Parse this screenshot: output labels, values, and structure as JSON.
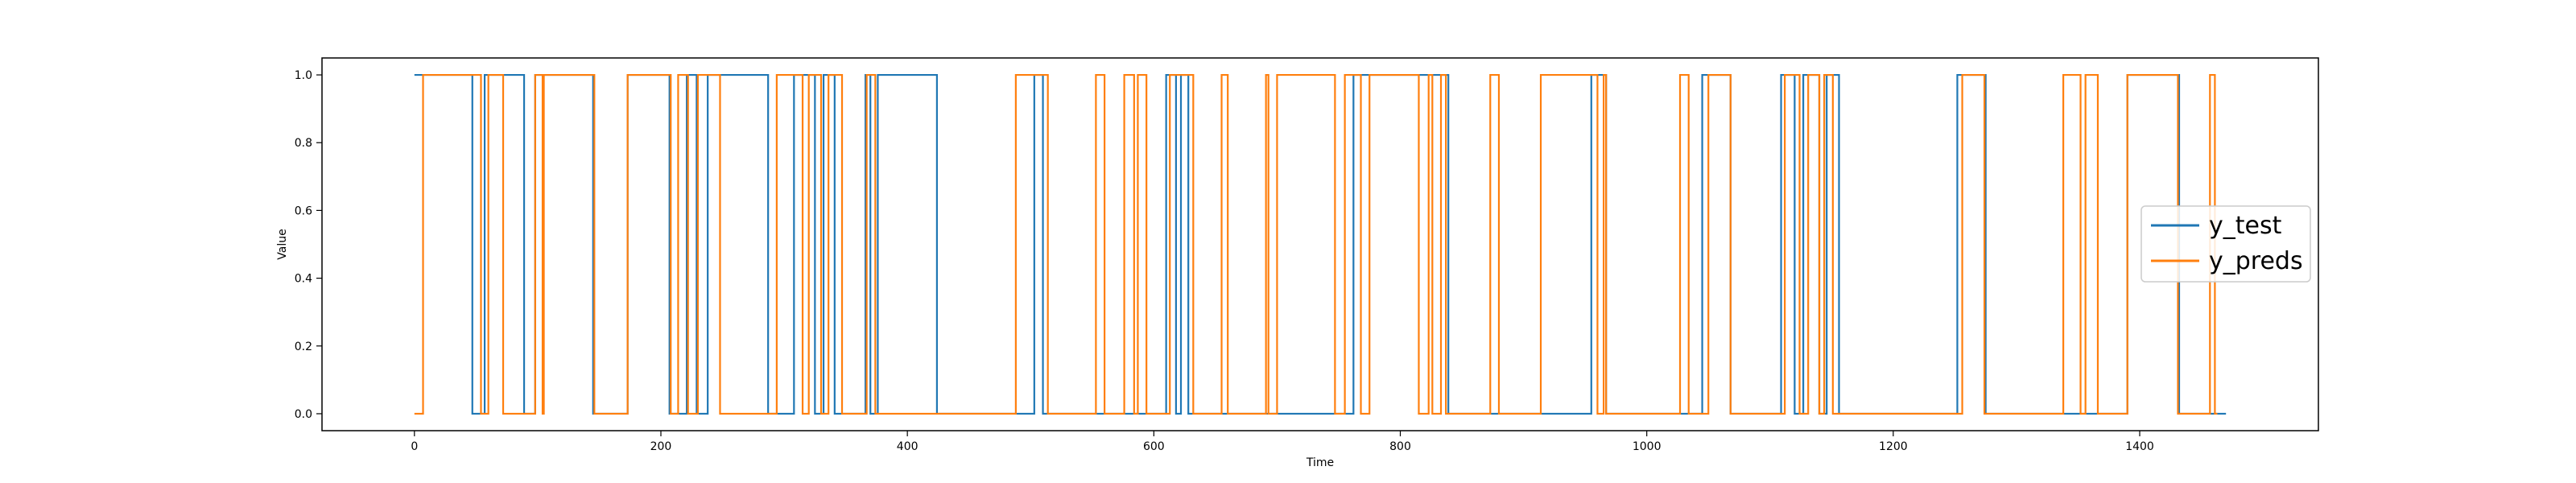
{
  "chart_data": {
    "type": "line",
    "xlabel": "Time",
    "ylabel": "Value",
    "xlim": [
      -75,
      1545
    ],
    "ylim": [
      -0.05,
      1.05
    ],
    "xticks": [
      0,
      200,
      400,
      600,
      800,
      1000,
      1200,
      1400
    ],
    "yticks": [
      0.0,
      0.2,
      0.4,
      0.6,
      0.8,
      1.0
    ],
    "grid": false,
    "legend_position": "center-right",
    "series": [
      {
        "name": "y_test",
        "color": "#1f77b4",
        "steps": [
          [
            0,
            1
          ],
          [
            47,
            0
          ],
          [
            57,
            1
          ],
          [
            89,
            0
          ],
          [
            98,
            1
          ],
          [
            145,
            0
          ],
          [
            173,
            1
          ],
          [
            207,
            0
          ],
          [
            221,
            1
          ],
          [
            229,
            0
          ],
          [
            238,
            1
          ],
          [
            287,
            0
          ],
          [
            308,
            1
          ],
          [
            325,
            0
          ],
          [
            332,
            1
          ],
          [
            341,
            0
          ],
          [
            366,
            1
          ],
          [
            370,
            0
          ],
          [
            376,
            1
          ],
          [
            424,
            0
          ],
          [
            503,
            1
          ],
          [
            510,
            0
          ],
          [
            610,
            1
          ],
          [
            618,
            0
          ],
          [
            622,
            1
          ],
          [
            628,
            0
          ],
          [
            762,
            1
          ],
          [
            839,
            0
          ],
          [
            955,
            1
          ],
          [
            967,
            0
          ],
          [
            1045,
            1
          ],
          [
            1068,
            0
          ],
          [
            1109,
            1
          ],
          [
            1120,
            0
          ],
          [
            1127,
            1
          ],
          [
            1140,
            0
          ],
          [
            1146,
            1
          ],
          [
            1156,
            0
          ],
          [
            1252,
            1
          ],
          [
            1275,
            0
          ],
          [
            1390,
            1
          ],
          [
            1432,
            0
          ]
        ],
        "x_end": 1470
      },
      {
        "name": "y_preds",
        "color": "#ff7f0e",
        "steps": [
          [
            0,
            0
          ],
          [
            7,
            1
          ],
          [
            54,
            0
          ],
          [
            60,
            1
          ],
          [
            72,
            0
          ],
          [
            98,
            1
          ],
          [
            104,
            0
          ],
          [
            105,
            1
          ],
          [
            146,
            0
          ],
          [
            173,
            1
          ],
          [
            208,
            0
          ],
          [
            214,
            1
          ],
          [
            222,
            0
          ],
          [
            230,
            1
          ],
          [
            248,
            0
          ],
          [
            294,
            1
          ],
          [
            315,
            0
          ],
          [
            320,
            1
          ],
          [
            330,
            0
          ],
          [
            336,
            1
          ],
          [
            347,
            0
          ],
          [
            367,
            1
          ],
          [
            374,
            0
          ],
          [
            488,
            1
          ],
          [
            514,
            0
          ],
          [
            553,
            1
          ],
          [
            560,
            0
          ],
          [
            576,
            1
          ],
          [
            584,
            0
          ],
          [
            587,
            1
          ],
          [
            594,
            0
          ],
          [
            613,
            1
          ],
          [
            632,
            0
          ],
          [
            655,
            1
          ],
          [
            660,
            0
          ],
          [
            691,
            1
          ],
          [
            693,
            0
          ],
          [
            700,
            1
          ],
          [
            747,
            0
          ],
          [
            755,
            1
          ],
          [
            768,
            0
          ],
          [
            775,
            1
          ],
          [
            815,
            0
          ],
          [
            823,
            1
          ],
          [
            826,
            0
          ],
          [
            833,
            1
          ],
          [
            837,
            0
          ],
          [
            873,
            1
          ],
          [
            880,
            0
          ],
          [
            914,
            1
          ],
          [
            960,
            0
          ],
          [
            965,
            1
          ],
          [
            967,
            0
          ],
          [
            1027,
            1
          ],
          [
            1034,
            0
          ],
          [
            1050,
            1
          ],
          [
            1068,
            0
          ],
          [
            1112,
            1
          ],
          [
            1124,
            0
          ],
          [
            1131,
            1
          ],
          [
            1140,
            0
          ],
          [
            1144,
            1
          ],
          [
            1151,
            0
          ],
          [
            1256,
            1
          ],
          [
            1274,
            0
          ],
          [
            1338,
            1
          ],
          [
            1352,
            0
          ],
          [
            1356,
            1
          ],
          [
            1366,
            0
          ],
          [
            1390,
            1
          ],
          [
            1431,
            0
          ],
          [
            1457,
            1
          ],
          [
            1461,
            0
          ]
        ],
        "x_end": 1463
      }
    ]
  },
  "colors": {
    "y_test": "#1f77b4",
    "y_preds": "#ff7f0e",
    "axes": "#000000",
    "background": "#ffffff",
    "legend_border": "#cccccc"
  }
}
